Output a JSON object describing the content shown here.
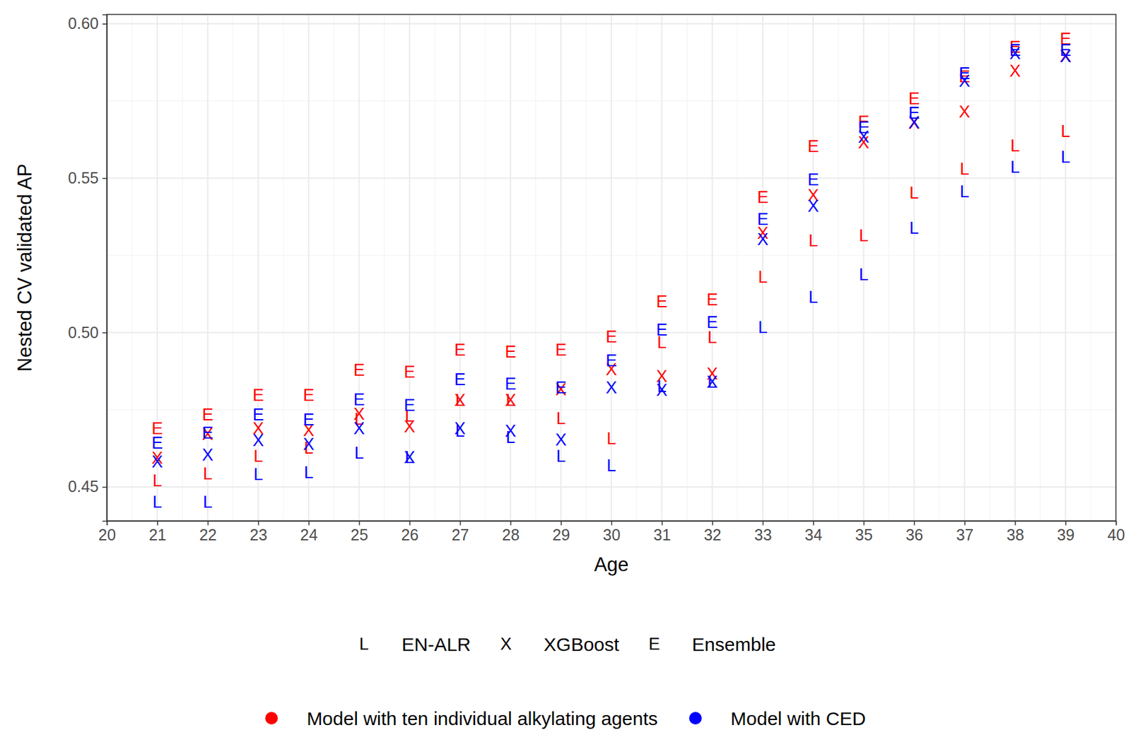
{
  "chart_data": {
    "type": "scatter",
    "x_label": "Age",
    "y_label": "Nested CV validated AP",
    "x": [
      21,
      22,
      23,
      24,
      25,
      26,
      27,
      28,
      29,
      30,
      31,
      32,
      33,
      34,
      35,
      36,
      37,
      38,
      39
    ],
    "xlim": [
      20,
      40
    ],
    "xticks": [
      20,
      21,
      22,
      23,
      24,
      25,
      26,
      27,
      28,
      29,
      30,
      31,
      32,
      33,
      34,
      35,
      36,
      37,
      38,
      39,
      40
    ],
    "ylim": [
      0.439,
      0.603
    ],
    "yticks": [
      0.45,
      {
        "value": 0.5,
        "label": "0.50"
      },
      0.55,
      {
        "value": 0.6,
        "label": "0.60"
      }
    ],
    "grid": true,
    "series": [
      {
        "name": "EN-ALR",
        "marker": "L",
        "color": "#ff0000",
        "values": [
          0.4521,
          0.4542,
          0.46,
          0.4626,
          0.472,
          0.473,
          0.478,
          0.478,
          0.4722,
          0.4657,
          0.4967,
          0.4984,
          0.518,
          0.5297,
          0.5313,
          0.5453,
          0.553,
          0.5605,
          0.5652
        ]
      },
      {
        "name": "XGBoost",
        "marker": "X",
        "color": "#ff0000",
        "values": [
          0.4593,
          0.4671,
          0.469,
          0.4682,
          0.4736,
          0.4696,
          0.478,
          0.478,
          0.4815,
          0.4881,
          0.4857,
          0.4867,
          0.5322,
          0.5444,
          0.5614,
          0.5678,
          0.5715,
          0.5846,
          0.5895
        ]
      },
      {
        "name": "Ensemble",
        "marker": "E",
        "color": "#ff0000",
        "values": [
          0.469,
          0.4734,
          0.4797,
          0.4797,
          0.4879,
          0.4872,
          0.4944,
          0.4937,
          0.4944,
          0.4986,
          0.51,
          0.5107,
          0.5437,
          0.5603,
          0.5682,
          0.5757,
          0.5829,
          0.5925,
          0.5951
        ]
      },
      {
        "name": "EN-ALR",
        "marker": "L",
        "color": "#0000ff",
        "values": [
          0.4451,
          0.4451,
          0.454,
          0.4547,
          0.461,
          0.4596,
          0.468,
          0.4661,
          0.46,
          0.457,
          0.4825,
          0.4839,
          0.5016,
          0.5114,
          0.5187,
          0.5339,
          0.5456,
          0.5535,
          0.5568
        ]
      },
      {
        "name": "XGBoost",
        "marker": "X",
        "color": "#0000ff",
        "values": [
          0.4582,
          0.4603,
          0.465,
          0.4638,
          0.4689,
          0.4596,
          0.4689,
          0.468,
          0.4652,
          0.4822,
          0.4813,
          0.4839,
          0.5301,
          0.5409,
          0.5633,
          0.568,
          0.5815,
          0.5904,
          0.5893
        ]
      },
      {
        "name": "Ensemble",
        "marker": "E",
        "color": "#0000ff",
        "values": [
          0.4642,
          0.4675,
          0.4734,
          0.4717,
          0.4783,
          0.4764,
          0.4848,
          0.4834,
          0.4822,
          0.4909,
          0.5009,
          0.5033,
          0.5367,
          0.5495,
          0.5664,
          0.571,
          0.5839,
          0.5914,
          0.5914
        ]
      }
    ],
    "groups": [
      {
        "name": "Model with ten individual alkylating agents",
        "color": "#ff0000"
      },
      {
        "name": "Model with CED",
        "color": "#0000ff"
      }
    ]
  }
}
